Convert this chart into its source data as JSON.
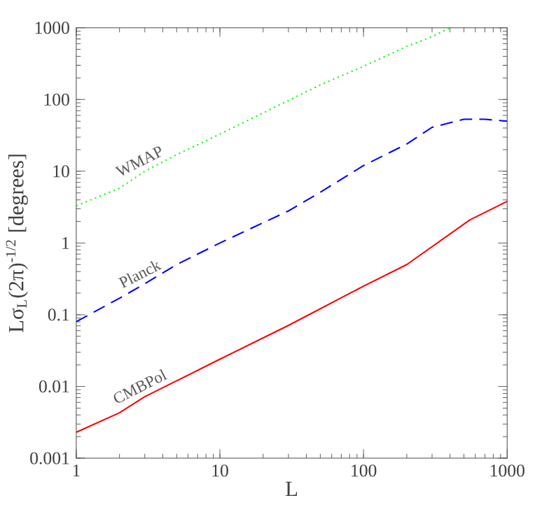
{
  "chart_data": {
    "type": "line",
    "xlabel": "L",
    "ylabel": "Lσ$_{L}$(2π)$^{-1/2}$ [degrees]",
    "log": "xy",
    "xlim": [
      1,
      1000
    ],
    "ylim": [
      0.001,
      1000
    ],
    "xticks": [
      1,
      10,
      100,
      1000
    ],
    "yticks": [
      0.001,
      0.01,
      0.1,
      1,
      10,
      100,
      1000
    ],
    "grid": false,
    "legend": false,
    "series": [
      {
        "name": "WMAP",
        "color": "#00ff00",
        "line_style": "dotted",
        "x": [
          1,
          2,
          3,
          5,
          10,
          20,
          30,
          50,
          100,
          200,
          300,
          400
        ],
        "values": [
          3.3,
          5.8,
          10,
          17,
          33,
          65,
          97,
          160,
          290,
          550,
          750,
          1000
        ]
      },
      {
        "name": "Planck",
        "color": "#0000ff",
        "line_style": "dashed",
        "x": [
          1,
          2,
          3,
          5,
          10,
          30,
          50,
          100,
          200,
          300,
          500,
          700,
          1000
        ],
        "values": [
          0.08,
          0.17,
          0.27,
          0.5,
          1,
          2.8,
          5.1,
          12,
          24,
          41,
          53,
          53,
          50
        ]
      },
      {
        "name": "CMBPol",
        "color": "#ff0000",
        "line_style": "solid",
        "x": [
          1,
          2,
          3,
          5,
          10,
          30,
          100,
          200,
          550,
          1000
        ],
        "values": [
          0.0023,
          0.0043,
          0.0072,
          0.012,
          0.024,
          0.071,
          0.25,
          0.5,
          2.1,
          3.8
        ]
      }
    ]
  }
}
